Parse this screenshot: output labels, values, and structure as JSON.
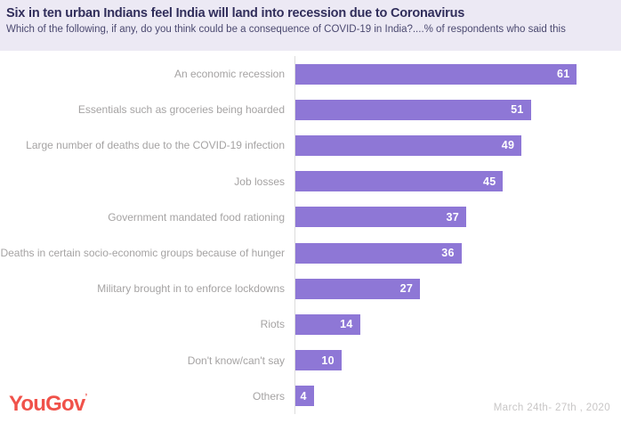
{
  "header": {
    "title": "Six in ten urban Indians feel India will land into recession due to Coronavirus",
    "subtitle": "Which of the following, if any, do you think could be a consequence of COVID-19 in India?....% of respondents who said this"
  },
  "chart_data": {
    "type": "bar",
    "orientation": "horizontal",
    "title": "Six in ten urban Indians feel India will land into recession due to Coronavirus",
    "subtitle": "Which of the following, if any, do you think could be a consequence of COVID-19 in India?....% of respondents who said this",
    "categories": [
      "An economic recession",
      "Essentials such as groceries being hoarded",
      "Large number of deaths due to the COVID-19 infection",
      "Job losses",
      "Government mandated food rationing",
      "Deaths in certain socio-economic groups because of hunger",
      "Military brought in to enforce lockdowns",
      "Riots",
      "Don't know/can't say",
      "Others"
    ],
    "values": [
      61,
      51,
      49,
      45,
      37,
      36,
      27,
      14,
      10,
      4
    ],
    "xlabel": "",
    "ylabel": "",
    "xlim": [
      0,
      69
    ],
    "grid": false,
    "legend": false,
    "value_label_position": "inside-end"
  },
  "footer": {
    "brand": "YouGov",
    "brand_mark": "’",
    "date_range": "March 24th- 27th , 2020"
  },
  "colors": {
    "header_bg": "#ECE9F4",
    "title": "#312E5B",
    "subtitle": "#4B4970",
    "bar": "#8E77D6",
    "category_label": "#A5A3A3",
    "value_label": "#FFFFFF",
    "axis_line": "#DCDCDC",
    "brand": "#F0524A",
    "date": "#C8C6C6"
  }
}
